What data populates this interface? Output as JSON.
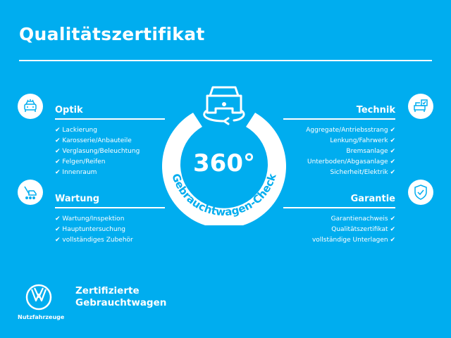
{
  "title": "Qualitätszertifikat",
  "colors": {
    "background": "#00adef",
    "foreground": "#ffffff"
  },
  "badge": {
    "number": "360°",
    "arc_text": "Gebrauchtwagen-Check",
    "icon": "car-rotate-icon"
  },
  "sections": {
    "optik": {
      "heading": "Optik",
      "icon": "car-front-icon",
      "items": [
        "Lackierung",
        "Karosserie/Anbauteile",
        "Verglasung/Beleuchtung",
        "Felgen/Reifen",
        "Innenraum"
      ]
    },
    "wartung": {
      "heading": "Wartung",
      "icon": "wrench-car-icon",
      "items": [
        "Wartung/Inspektion",
        "Hauptuntersuchung",
        "vollständiges Zubehör"
      ]
    },
    "technik": {
      "heading": "Technik",
      "icon": "car-checklist-icon",
      "items": [
        "Aggregate/Antriebsstrang",
        "Lenkung/Fahrwerk",
        "Bremsanlage",
        "Unterboden/Abgasanlage",
        "Sicherheit/Elektrik"
      ]
    },
    "garantie": {
      "heading": "Garantie",
      "icon": "shield-check-icon",
      "items": [
        "Garantienachweis",
        "Qualitätszertifikat",
        "vollständige Unterlagen"
      ]
    }
  },
  "check_mark": "✔",
  "footer": {
    "logo_label": "Nutzfahrzeuge",
    "tagline_1": "Zertifizierte",
    "tagline_2": "Gebrauchtwagen"
  }
}
